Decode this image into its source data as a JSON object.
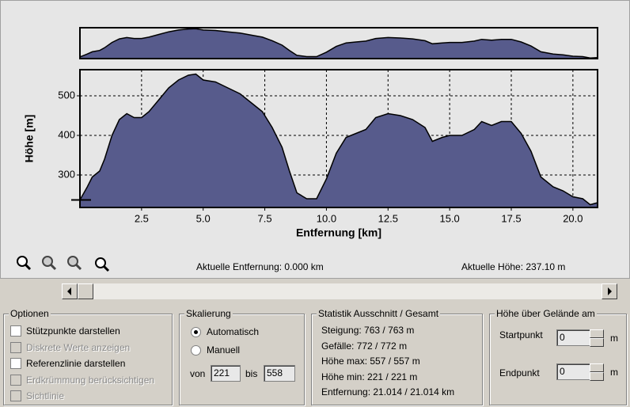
{
  "chart_data": {
    "type": "area",
    "xlabel": "Entfernung [km]",
    "ylabel": "Höhe [m]",
    "x": [
      0,
      0.3,
      0.5,
      0.8,
      1.0,
      1.3,
      1.6,
      1.9,
      2.2,
      2.5,
      2.8,
      3.2,
      3.6,
      4.0,
      4.4,
      4.7,
      5.0,
      5.5,
      6.0,
      6.5,
      7.0,
      7.4,
      7.8,
      8.2,
      8.5,
      8.8,
      9.2,
      9.6,
      10.0,
      10.4,
      10.8,
      11.2,
      11.6,
      12.0,
      12.5,
      13.0,
      13.5,
      14.0,
      14.3,
      14.7,
      15.0,
      15.5,
      16.0,
      16.3,
      16.7,
      17.1,
      17.5,
      17.9,
      18.3,
      18.7,
      19.2,
      19.6,
      20.0,
      20.4,
      20.7,
      21.0
    ],
    "values": [
      237,
      270,
      295,
      310,
      340,
      400,
      440,
      455,
      445,
      445,
      460,
      490,
      520,
      540,
      552,
      555,
      540,
      535,
      520,
      505,
      480,
      460,
      420,
      370,
      310,
      255,
      240,
      240,
      290,
      355,
      395,
      405,
      415,
      445,
      455,
      450,
      440,
      420,
      385,
      395,
      400,
      400,
      415,
      435,
      425,
      435,
      435,
      405,
      360,
      295,
      270,
      260,
      245,
      240,
      225,
      230
    ],
    "color": "#575b8c",
    "xlim": [
      0,
      21.0
    ],
    "ylim": [
      218,
      566
    ],
    "xticks": [
      2.5,
      {
        "value": 5,
        "label": "5.0"
      },
      7.5,
      {
        "value": 10,
        "label": "10.0"
      },
      12.5,
      {
        "value": 15,
        "label": "15.0"
      },
      17.5,
      {
        "value": 20,
        "label": "20.0"
      }
    ],
    "yticks": [
      300,
      400,
      500
    ],
    "grid": true
  },
  "status": {
    "distance": "Aktuelle Entfernung: 0.000 km",
    "height": "Aktuelle Höhe: 237.10 m"
  },
  "options": {
    "title": "Optionen",
    "items": [
      {
        "label": "Stützpunkte darstellen",
        "checked": false,
        "enabled": true
      },
      {
        "label": "Diskrete Werte anzeigen",
        "checked": false,
        "enabled": false
      },
      {
        "label": "Referenzlinie darstellen",
        "checked": false,
        "enabled": true
      },
      {
        "label": "Erdkrümmung berücksichtigen",
        "checked": false,
        "enabled": false
      },
      {
        "label": "Sichtlinie",
        "checked": false,
        "enabled": false
      }
    ]
  },
  "scaling": {
    "title": "Skalierung",
    "automatic": "Automatisch",
    "manual": "Manuell",
    "automatic_selected": true,
    "from_label": "von",
    "from": "221",
    "to_label": "bis",
    "to": "558"
  },
  "statistics": {
    "title": "Statistik  Ausschnitt / Gesamt",
    "lines": [
      "Steigung: 763 / 763 m",
      "Gefälle: 772 / 772 m",
      "Höhe max: 557 / 557 m",
      "Höhe min: 221 / 221 m",
      "Entfernung: 21.014 / 21.014 km"
    ]
  },
  "ground_height": {
    "title": "Höhe über Gelände am",
    "start_label": "Startpunkt",
    "start": "0",
    "end_label": "Endpunkt",
    "end": "0",
    "unit": "m"
  }
}
